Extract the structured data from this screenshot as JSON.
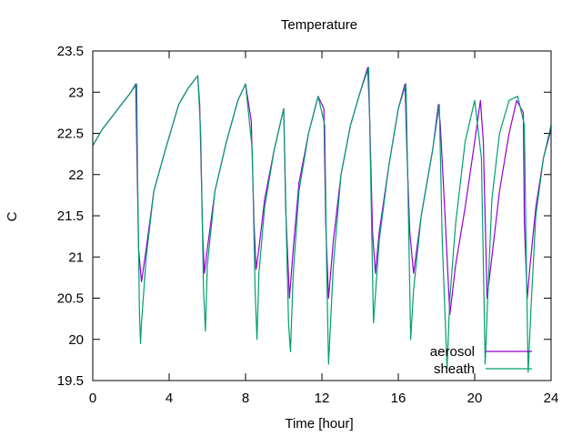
{
  "chart_data": {
    "type": "line",
    "title": "Temperature",
    "xlabel": "Time [hour]",
    "ylabel": "C",
    "xlim": [
      0,
      24
    ],
    "ylim": [
      19.5,
      23.5
    ],
    "xticks": [
      0,
      4,
      8,
      12,
      16,
      20,
      24
    ],
    "yticks": [
      19.5,
      20,
      20.5,
      21,
      21.5,
      22,
      22.5,
      23,
      23.5
    ],
    "grid": false,
    "legend_position": "bottom-right",
    "series": [
      {
        "name": "aerosol",
        "color": "#9400d3",
        "x": [
          0,
          0.5,
          1.0,
          1.5,
          2.0,
          2.25,
          2.3,
          2.4,
          2.55,
          2.8,
          3.2,
          3.8,
          4.5,
          5.0,
          5.5,
          5.6,
          5.75,
          5.85,
          6.0,
          6.4,
          7.0,
          7.6,
          8.0,
          8.3,
          8.45,
          8.55,
          8.7,
          9.0,
          9.5,
          10.0,
          10.1,
          10.3,
          10.5,
          10.8,
          11.3,
          11.8,
          12.1,
          12.2,
          12.35,
          12.6,
          13.0,
          13.5,
          14.0,
          14.4,
          14.5,
          14.65,
          14.8,
          15.0,
          15.5,
          16.0,
          16.35,
          16.45,
          16.6,
          16.8,
          17.2,
          17.8,
          18.1,
          18.2,
          18.45,
          18.7,
          19.0,
          19.5,
          20.0,
          20.3,
          20.45,
          20.65,
          20.9,
          21.3,
          21.8,
          22.2,
          22.55,
          22.6,
          22.75,
          22.9,
          23.2,
          23.6,
          24.0
        ],
        "y": [
          22.35,
          22.55,
          22.7,
          22.85,
          23.0,
          23.1,
          22.4,
          21.1,
          20.7,
          21.1,
          21.8,
          22.3,
          22.85,
          23.05,
          23.2,
          22.85,
          21.3,
          20.8,
          21.1,
          21.8,
          22.4,
          22.9,
          23.1,
          22.65,
          21.4,
          20.85,
          21.1,
          21.7,
          22.3,
          22.8,
          21.6,
          20.5,
          21.1,
          21.9,
          22.5,
          22.95,
          22.8,
          21.4,
          20.5,
          21.2,
          22.0,
          22.6,
          23.0,
          23.3,
          22.7,
          21.3,
          20.8,
          21.3,
          22.1,
          22.8,
          23.1,
          22.3,
          21.3,
          20.8,
          21.5,
          22.3,
          22.85,
          22.6,
          21.5,
          20.3,
          20.9,
          21.6,
          22.4,
          22.9,
          22.4,
          20.5,
          21.0,
          21.8,
          22.5,
          22.9,
          22.75,
          21.4,
          20.5,
          20.9,
          21.6,
          22.2,
          22.55
        ]
      },
      {
        "name": "sheath",
        "color": "#009e73",
        "x": [
          0,
          0.5,
          1.0,
          1.5,
          2.0,
          2.3,
          2.35,
          2.45,
          2.5,
          2.55,
          2.8,
          3.2,
          3.8,
          4.5,
          5.0,
          5.5,
          5.65,
          5.8,
          5.9,
          6.0,
          6.4,
          7.0,
          7.6,
          8.0,
          8.35,
          8.5,
          8.6,
          8.7,
          9.0,
          9.5,
          10.0,
          10.15,
          10.25,
          10.35,
          10.5,
          10.8,
          11.3,
          11.8,
          12.15,
          12.25,
          12.35,
          12.6,
          13.0,
          13.5,
          14.0,
          14.45,
          14.55,
          14.7,
          15.0,
          15.5,
          16.0,
          16.4,
          16.5,
          16.65,
          16.8,
          17.2,
          17.8,
          18.15,
          18.3,
          18.55,
          18.7,
          19.0,
          19.5,
          20.0,
          20.35,
          20.55,
          20.7,
          20.9,
          21.3,
          21.8,
          22.25,
          22.6,
          22.7,
          22.8,
          22.95,
          23.2,
          23.6,
          24.0
        ],
        "y": [
          22.35,
          22.55,
          22.7,
          22.85,
          23.0,
          23.1,
          22.0,
          20.3,
          19.95,
          20.2,
          21.0,
          21.8,
          22.3,
          22.85,
          23.05,
          23.2,
          22.5,
          20.6,
          20.1,
          20.9,
          21.8,
          22.4,
          22.9,
          23.1,
          22.3,
          20.6,
          20.0,
          20.8,
          21.6,
          22.3,
          22.8,
          21.2,
          20.2,
          19.85,
          20.8,
          21.8,
          22.5,
          22.95,
          22.6,
          20.8,
          19.7,
          20.9,
          22.0,
          22.6,
          23.0,
          23.3,
          22.0,
          20.2,
          21.2,
          22.1,
          22.8,
          23.1,
          21.9,
          20.0,
          20.6,
          21.5,
          22.3,
          22.85,
          21.2,
          19.65,
          20.5,
          21.4,
          22.4,
          22.9,
          22.2,
          19.7,
          20.6,
          21.7,
          22.5,
          22.9,
          22.95,
          22.6,
          21.0,
          19.6,
          20.4,
          21.5,
          22.2,
          22.6
        ]
      }
    ]
  }
}
